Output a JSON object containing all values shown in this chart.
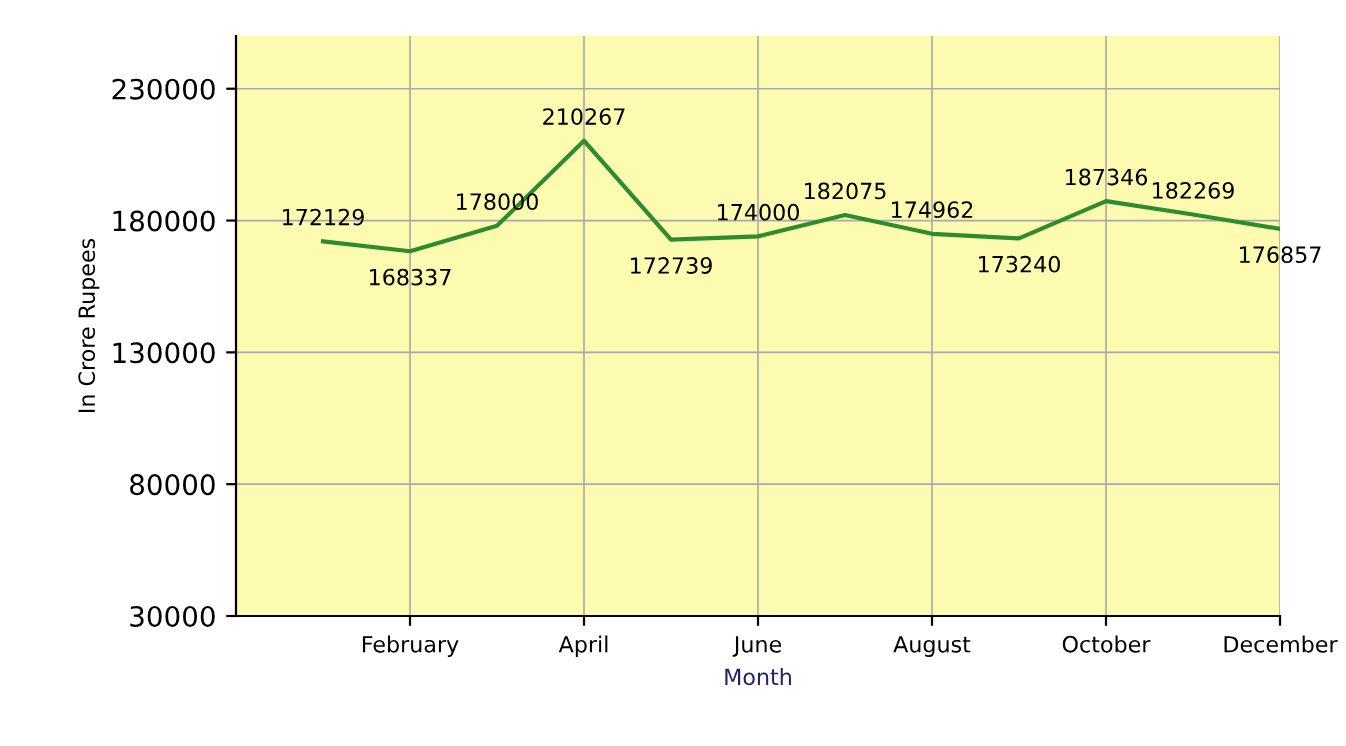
{
  "chart_data": {
    "type": "line",
    "xlabel": "Month",
    "ylabel": "In Crore Rupees",
    "categories": [
      null,
      "February",
      null,
      "April",
      null,
      "June",
      null,
      "August",
      null,
      "October",
      null,
      "December"
    ],
    "values": [
      172129,
      168337,
      178000,
      210267,
      172739,
      174000,
      182075,
      174962,
      173240,
      187346,
      182269,
      176857
    ],
    "color": "#2e8b2e",
    "ylim": [
      30000,
      250000
    ],
    "yticks": [
      30000,
      80000,
      130000,
      180000,
      230000
    ],
    "grid": true,
    "data_labels": true,
    "marker": "none",
    "line_style": "solid"
  }
}
